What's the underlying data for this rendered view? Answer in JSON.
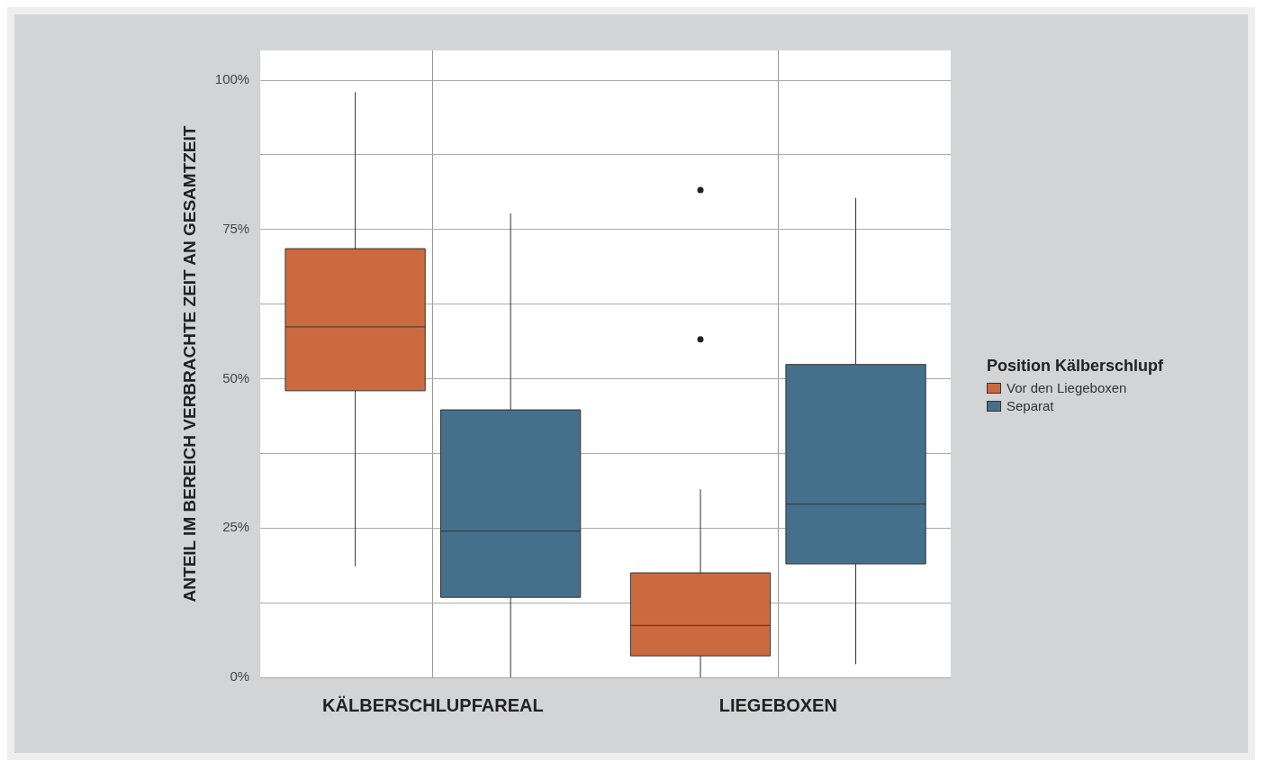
{
  "chart_data": {
    "type": "box",
    "ylabel": "ANTEIL IM BEREICH VERBRACHTE ZEIT AN GESAMTZEIT",
    "legend_title": "Position Kälberschlupf",
    "legend": "right",
    "grid": true,
    "categories": [
      "KÄLBERSCHLUPFAREAL",
      "LIEGEBOXEN"
    ],
    "ylim": [
      0,
      105
    ],
    "yticks": [
      {
        "value": 0,
        "label": "0%"
      },
      {
        "value": 12.5,
        "label": null
      },
      {
        "value": 25,
        "label": "25%"
      },
      {
        "value": 37.5,
        "label": null
      },
      {
        "value": 50,
        "label": "50%"
      },
      {
        "value": 62.5,
        "label": null
      },
      {
        "value": 75,
        "label": "75%"
      },
      {
        "value": 87.5,
        "label": null
      },
      {
        "value": 100,
        "label": "100%"
      }
    ],
    "series": [
      {
        "name": "Vor den Liegeboxen",
        "color": "#cc6a3f",
        "boxes": [
          {
            "low": 18.6,
            "q1": 48,
            "median": 58.7,
            "q3": 71.8,
            "high": 98
          },
          {
            "low": 0,
            "q1": 3.6,
            "median": 8.7,
            "q3": 17.5,
            "high": 31.5,
            "outliers": [
              81.6,
              56.6
            ]
          }
        ]
      },
      {
        "name": "Separat",
        "color": "#45708b",
        "boxes": [
          {
            "low": 0,
            "q1": 13.4,
            "median": 24.5,
            "q3": 44.8,
            "high": 77.7
          },
          {
            "low": 2.2,
            "q1": 19,
            "median": 29,
            "q3": 52.4,
            "high": 80.3
          }
        ]
      }
    ]
  }
}
